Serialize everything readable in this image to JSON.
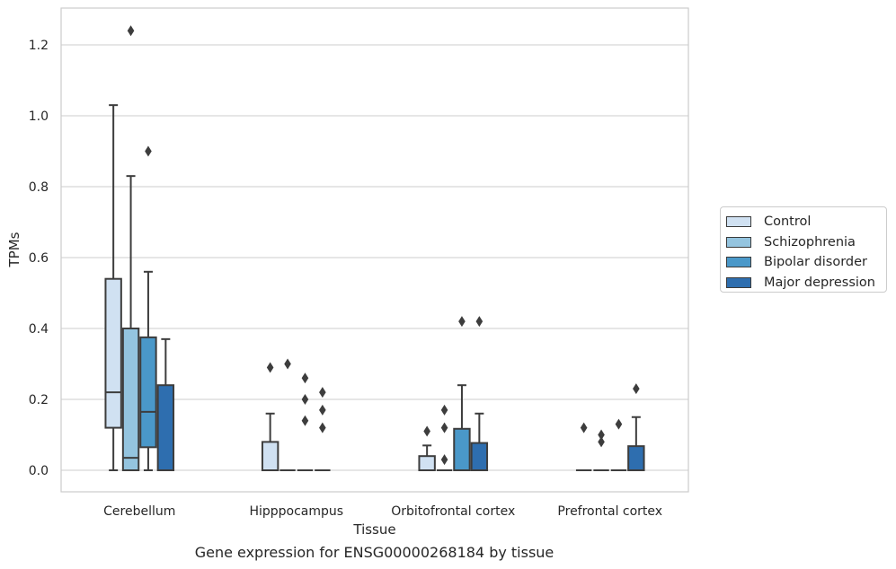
{
  "chart_data": {
    "type": "boxplot",
    "title": "",
    "caption": "Gene expression for ENSG00000268184 by tissue",
    "xlabel": "Tissue",
    "ylabel": "TPMs",
    "ylim": [
      -0.06,
      1.3
    ],
    "yticks": [
      0.0,
      0.2,
      0.4,
      0.6,
      0.8,
      1.0,
      1.2
    ],
    "ytick_labels": [
      "0.0",
      "0.2",
      "0.4",
      "0.6",
      "0.8",
      "1.0",
      "1.2"
    ],
    "grid": "horizontal",
    "legend_position": "right",
    "categories": [
      "Cerebellum",
      "Hipppocampus",
      "Orbitofrontal cortex",
      "Prefrontal cortex"
    ],
    "series": [
      {
        "name": "Control",
        "color": "#d0e1f2",
        "boxes": [
          {
            "whislo": 0.0,
            "q1": 0.12,
            "med": 0.22,
            "q3": 0.54,
            "whishi": 1.03,
            "fliers": []
          },
          {
            "whislo": 0.0,
            "q1": 0.0,
            "med": 0.0,
            "q3": 0.08,
            "whishi": 0.16,
            "fliers": [
              0.29
            ]
          },
          {
            "whislo": 0.0,
            "q1": 0.0,
            "med": 0.0,
            "q3": 0.04,
            "whishi": 0.07,
            "fliers": [
              0.11
            ]
          },
          {
            "whislo": 0.0,
            "q1": 0.0,
            "med": 0.0,
            "q3": 0.0,
            "whishi": 0.0,
            "fliers": [
              0.12
            ]
          }
        ]
      },
      {
        "name": "Schizophrenia",
        "color": "#94c4df",
        "boxes": [
          {
            "whislo": 0.0,
            "q1": 0.0,
            "med": 0.035,
            "q3": 0.4,
            "whishi": 0.83,
            "fliers": [
              1.24
            ]
          },
          {
            "whislo": 0.0,
            "q1": 0.0,
            "med": 0.0,
            "q3": 0.0,
            "whishi": 0.0,
            "fliers": [
              0.3
            ]
          },
          {
            "whislo": 0.0,
            "q1": 0.0,
            "med": 0.0,
            "q3": 0.0,
            "whishi": 0.0,
            "fliers": [
              0.03,
              0.12,
              0.17
            ]
          },
          {
            "whislo": 0.0,
            "q1": 0.0,
            "med": 0.0,
            "q3": 0.0,
            "whishi": 0.0,
            "fliers": [
              0.08,
              0.1
            ]
          }
        ]
      },
      {
        "name": "Bipolar disorder",
        "color": "#4a98c9",
        "boxes": [
          {
            "whislo": 0.0,
            "q1": 0.065,
            "med": 0.165,
            "q3": 0.375,
            "whishi": 0.56,
            "fliers": [
              0.9
            ]
          },
          {
            "whislo": 0.0,
            "q1": 0.0,
            "med": 0.0,
            "q3": 0.0,
            "whishi": 0.0,
            "fliers": [
              0.14,
              0.2,
              0.26
            ]
          },
          {
            "whislo": 0.0,
            "q1": 0.0,
            "med": 0.0,
            "q3": 0.117,
            "whishi": 0.24,
            "fliers": [
              0.42
            ]
          },
          {
            "whislo": 0.0,
            "q1": 0.0,
            "med": 0.0,
            "q3": 0.0,
            "whishi": 0.0,
            "fliers": [
              0.13
            ]
          }
        ]
      },
      {
        "name": "Major depression",
        "color": "#2e6eaf",
        "boxes": [
          {
            "whislo": 0.0,
            "q1": 0.0,
            "med": 0.0,
            "q3": 0.24,
            "whishi": 0.37,
            "fliers": []
          },
          {
            "whislo": 0.0,
            "q1": 0.0,
            "med": 0.0,
            "q3": 0.0,
            "whishi": 0.0,
            "fliers": [
              0.12,
              0.17,
              0.22
            ]
          },
          {
            "whislo": 0.0,
            "q1": 0.0,
            "med": 0.0,
            "q3": 0.077,
            "whishi": 0.16,
            "fliers": [
              0.42
            ]
          },
          {
            "whislo": 0.0,
            "q1": 0.0,
            "med": 0.0,
            "q3": 0.068,
            "whishi": 0.15,
            "fliers": [
              0.23
            ]
          }
        ]
      }
    ]
  }
}
